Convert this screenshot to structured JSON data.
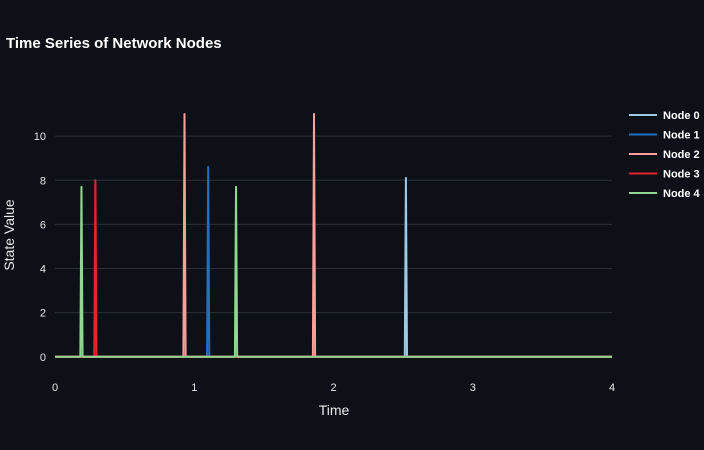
{
  "chart_data": {
    "type": "line",
    "title": "Time Series of Network Nodes",
    "xlabel": "Time",
    "ylabel": "State Value",
    "xlim": [
      0,
      4
    ],
    "ylim": [
      -0.6,
      12
    ],
    "x_ticks": [
      0,
      1,
      2,
      3,
      4
    ],
    "y_ticks": [
      0,
      2,
      4,
      6,
      8,
      10
    ],
    "grid": true,
    "legend_position": "right",
    "series": [
      {
        "name": "Node 0",
        "color": "#9ecae9",
        "spikes": [
          {
            "x": 2.52,
            "y": 8.1
          }
        ]
      },
      {
        "name": "Node 1",
        "color": "#1f6fc5",
        "spikes": [
          {
            "x": 1.1,
            "y": 8.6
          }
        ]
      },
      {
        "name": "Node 2",
        "color": "#ff9d9a",
        "spikes": [
          {
            "x": 0.93,
            "y": 11.0
          },
          {
            "x": 1.86,
            "y": 11.0
          }
        ]
      },
      {
        "name": "Node 3",
        "color": "#e3262b",
        "spikes": [
          {
            "x": 0.29,
            "y": 8.0
          }
        ]
      },
      {
        "name": "Node 4",
        "color": "#8fd88f",
        "spikes": [
          {
            "x": 0.19,
            "y": 7.7
          },
          {
            "x": 1.3,
            "y": 7.7
          }
        ]
      }
    ]
  }
}
